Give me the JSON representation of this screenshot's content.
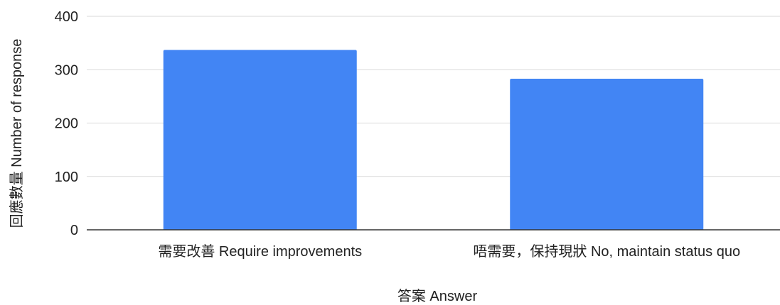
{
  "chart_data": {
    "type": "bar",
    "title": "",
    "xlabel": "答案 Answer",
    "ylabel": "回應數量 Number of response",
    "categories": [
      "需要改善 Require improvements",
      "唔需要，保持現狀 No, maintain status quo"
    ],
    "values": [
      337,
      283
    ],
    "ylim": [
      0,
      400
    ],
    "yticks": [
      0,
      100,
      200,
      300,
      400
    ],
    "grid": true,
    "legend": "none",
    "colors": {
      "bar": "#4285f4",
      "grid": "#d9d9d9",
      "axis": "#333333",
      "text": "#222222"
    }
  }
}
